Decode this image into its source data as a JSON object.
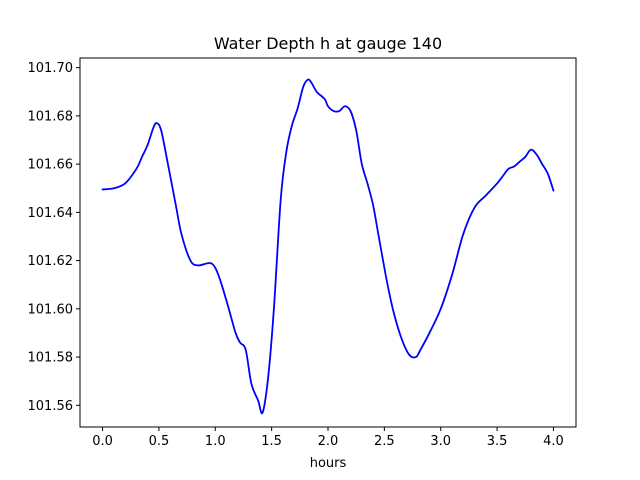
{
  "chart_data": {
    "type": "line",
    "title": "Water Depth h at gauge 140",
    "xlabel": "hours",
    "ylabel": "",
    "xlim": [
      -0.2,
      4.2
    ],
    "ylim": [
      101.551,
      101.704
    ],
    "x_ticks": [
      0.0,
      0.5,
      1.0,
      1.5,
      2.0,
      2.5,
      3.0,
      3.5,
      4.0
    ],
    "x_tick_labels": [
      "0.0",
      "0.5",
      "1.0",
      "1.5",
      "2.0",
      "2.5",
      "3.0",
      "3.5",
      "4.0"
    ],
    "y_ticks": [
      101.56,
      101.58,
      101.6,
      101.62,
      101.64,
      101.66,
      101.68,
      101.7
    ],
    "y_tick_labels": [
      "101.56",
      "101.58",
      "101.60",
      "101.62",
      "101.64",
      "101.66",
      "101.68",
      "101.70"
    ],
    "grid": false,
    "series": [
      {
        "color": "#0000ff",
        "x": [
          0.0,
          0.1,
          0.2,
          0.3,
          0.35,
          0.4,
          0.45,
          0.48,
          0.52,
          0.58,
          0.65,
          0.7,
          0.78,
          0.85,
          0.95,
          1.0,
          1.05,
          1.12,
          1.18,
          1.22,
          1.27,
          1.32,
          1.38,
          1.42,
          1.47,
          1.52,
          1.58,
          1.63,
          1.68,
          1.73,
          1.78,
          1.82,
          1.85,
          1.9,
          1.97,
          2.0,
          2.05,
          2.1,
          2.15,
          2.2,
          2.25,
          2.3,
          2.35,
          2.4,
          2.45,
          2.52,
          2.58,
          2.65,
          2.72,
          2.78,
          2.82,
          2.9,
          3.0,
          3.1,
          3.2,
          3.3,
          3.4,
          3.5,
          3.55,
          3.6,
          3.65,
          3.7,
          3.75,
          3.8,
          3.85,
          3.9,
          3.95,
          4.0
        ],
        "y": [
          101.6495,
          101.65,
          101.652,
          101.658,
          101.663,
          101.668,
          101.675,
          101.677,
          101.674,
          101.66,
          101.643,
          101.631,
          101.62,
          101.618,
          101.619,
          101.617,
          101.611,
          101.6,
          101.59,
          101.586,
          101.583,
          101.569,
          101.562,
          101.557,
          101.572,
          101.6,
          101.645,
          101.665,
          101.676,
          101.683,
          101.692,
          101.695,
          101.694,
          101.69,
          101.687,
          101.684,
          101.682,
          101.682,
          101.684,
          101.682,
          101.674,
          101.66,
          101.652,
          101.643,
          101.63,
          101.612,
          101.599,
          101.588,
          101.581,
          101.58,
          101.583,
          101.59,
          101.6,
          101.614,
          101.631,
          101.642,
          101.647,
          101.652,
          101.655,
          101.658,
          101.659,
          101.661,
          101.663,
          101.666,
          101.664,
          101.66,
          101.656,
          101.649
        ]
      }
    ]
  }
}
